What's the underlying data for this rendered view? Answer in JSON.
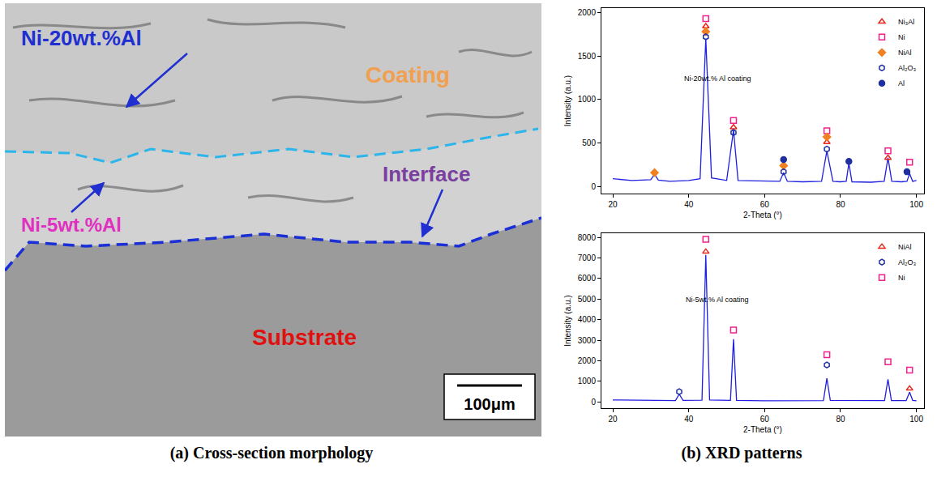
{
  "micrograph": {
    "caption": "(a) Cross-section morphology",
    "labels": {
      "outer_coating": "Ni-20wt.%Al",
      "coating": "Coating",
      "interface": "Interface",
      "inner_coating": "Ni-5wt.%Al",
      "substrate": "Substrate"
    },
    "scale_bar": "100μm"
  },
  "xrd_caption": "(b) XRD patterns",
  "chart_data": [
    {
      "type": "line",
      "annotation": "Ni-20wt.% Al coating",
      "x_label": "2-Theta (°)",
      "y_label": "Intensity (a.u.)",
      "xlim": [
        17,
        102
      ],
      "xticks": [
        20,
        40,
        60,
        80,
        100
      ],
      "ylim": [
        -80,
        2050
      ],
      "yticks": [
        0,
        500,
        1000,
        1500,
        2000
      ],
      "grid": false,
      "legend": "top right",
      "series": [
        {
          "type": "line",
          "color": "#1f1fe0",
          "x": [
            20,
            25,
            30,
            31,
            32,
            35,
            40,
            43,
            44.5,
            46,
            50,
            51.8,
            53,
            60,
            64,
            65,
            66,
            70,
            75,
            76.4,
            78,
            80,
            81.5,
            82.2,
            83,
            88,
            91.5,
            92.5,
            93.5,
            96,
            97.5,
            98.2,
            99,
            100
          ],
          "values": [
            90,
            70,
            80,
            140,
            75,
            60,
            70,
            90,
            1700,
            100,
            70,
            650,
            70,
            60,
            60,
            160,
            60,
            55,
            60,
            410,
            60,
            55,
            60,
            270,
            55,
            50,
            60,
            330,
            60,
            55,
            60,
            150,
            60,
            70
          ]
        },
        {
          "name": "Ni₃Al",
          "type": "scatter",
          "marker": "triangle-up-open",
          "color": "#e8261c",
          "x": [
            44.5,
            51.8,
            76.4,
            92.5
          ],
          "values": [
            1840,
            680,
            510,
            330
          ]
        },
        {
          "name": "Ni",
          "type": "scatter",
          "marker": "square-open",
          "color": "#f0208c",
          "x": [
            44.5,
            51.8,
            76.4,
            92.5,
            98.2
          ],
          "values": [
            1930,
            760,
            640,
            410,
            280
          ]
        },
        {
          "name": "NiAl",
          "type": "scatter",
          "marker": "diamond",
          "color": "#f08020",
          "x": [
            31,
            44.5,
            65,
            76.4
          ],
          "values": [
            160,
            1780,
            240,
            570
          ]
        },
        {
          "name": "Al₂O₃",
          "type": "scatter",
          "marker": "hexagon-open",
          "color": "#1f2fa0",
          "x": [
            44.5,
            51.8,
            65,
            76.4
          ],
          "values": [
            1720,
            620,
            170,
            430
          ]
        },
        {
          "name": "Al",
          "type": "scatter",
          "marker": "circle",
          "color": "#1f2fa0",
          "x": [
            65,
            82.2,
            97.5
          ],
          "values": [
            310,
            290,
            170
          ]
        }
      ]
    },
    {
      "type": "line",
      "annotation": "Ni-5wt.% Al coating",
      "x_label": "2-Theta (°)",
      "y_label": "Intensity (a.u.)",
      "xlim": [
        17,
        102
      ],
      "xticks": [
        20,
        40,
        60,
        80,
        100
      ],
      "ylim": [
        -300,
        8200
      ],
      "yticks": [
        0,
        1000,
        2000,
        3000,
        4000,
        5000,
        6000,
        7000,
        8000
      ],
      "grid": false,
      "legend": "top right",
      "series": [
        {
          "type": "line",
          "color": "#1f1fe0",
          "x": [
            20,
            30,
            36.5,
            37.5,
            38.5,
            43.5,
            44.5,
            45.5,
            51,
            51.8,
            52.6,
            60,
            75.5,
            76.4,
            77.3,
            91.6,
            92.5,
            93.4,
            97.3,
            98.2,
            99,
            100
          ],
          "values": [
            100,
            80,
            70,
            380,
            80,
            90,
            7150,
            100,
            80,
            3050,
            80,
            60,
            70,
            1150,
            80,
            70,
            1100,
            70,
            70,
            480,
            80,
            60
          ]
        },
        {
          "name": "NiAl",
          "type": "scatter",
          "marker": "triangle-up-open",
          "color": "#e8261c",
          "x": [
            44.5,
            98.2
          ],
          "values": [
            7300,
            650
          ]
        },
        {
          "name": "Al₂O₃",
          "type": "scatter",
          "marker": "hexagon-open",
          "color": "#1f2fa0",
          "x": [
            37.5,
            76.4
          ],
          "values": [
            500,
            1800
          ]
        },
        {
          "name": "Ni",
          "type": "scatter",
          "marker": "square-open",
          "color": "#f0208c",
          "x": [
            44.5,
            51.8,
            76.4,
            92.5,
            98.2
          ],
          "values": [
            7900,
            3500,
            2300,
            1950,
            1550
          ]
        }
      ]
    }
  ]
}
